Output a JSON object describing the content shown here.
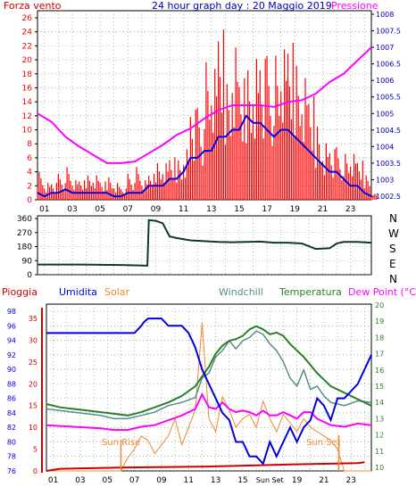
{
  "colors": {
    "background": "#ffffff",
    "frame": "#000000",
    "grid": "#6f8f6f",
    "wind_speed": "#ff0000",
    "wind_avg": "#0000e6",
    "pressure": "#ff00ff",
    "direction": "#0b3a30",
    "rain": "#cc0000",
    "humidity": "#0000dd",
    "solar": "#ee8833",
    "windchill": "#5a8a8a",
    "temperature": "#2a7f2a",
    "dewpoint": "#ff00ff",
    "title_blue": "#0000aa",
    "left_red": "#cc0000"
  },
  "header": {
    "left_label": "Forza vento",
    "title": "24 hour graph day : 20 Maggio 2019",
    "right_label": "Pressione"
  },
  "direction_labels": [
    "N",
    "W",
    "S",
    "E",
    "N"
  ],
  "legend": {
    "rain": "Pioggia",
    "humidity": "Umidita",
    "solar": "Solar",
    "windchill": "Windchill",
    "temperature": "Temperatura",
    "dewpoint": "Dew Point (°C)"
  },
  "annotations": {
    "sunrise": "Sun Rise",
    "sunset": "Sun Set",
    "sunset_axis": "Sun Set"
  },
  "chart_data": [
    {
      "type": "line",
      "name": "wind_pressure",
      "x_ticks": [
        "01",
        "03",
        "05",
        "07",
        "09",
        "11",
        "13",
        "15",
        "17",
        "19",
        "21",
        "23"
      ],
      "xlim": [
        0,
        24
      ],
      "ylim": [
        0,
        26
      ],
      "y_ticks": [
        0,
        2,
        4,
        6,
        8,
        10,
        12,
        14,
        16,
        18,
        20,
        22,
        24,
        26
      ],
      "y2lim": [
        1002.5,
        1008
      ],
      "y2_ticks": [
        1002.5,
        1003,
        1003.5,
        1004,
        1004.5,
        1005,
        1005.5,
        1006,
        1006.5,
        1007,
        1007.5,
        1008
      ],
      "gust": {
        "x": [
          0,
          0.5,
          1,
          1.5,
          2,
          2.5,
          3,
          3.5,
          4,
          4.5,
          5,
          5.5,
          6,
          6.5,
          7,
          7.5,
          8,
          8.5,
          9,
          9.5,
          10,
          10.5,
          11,
          11.5,
          12,
          12.5,
          13,
          13.5,
          14,
          14.5,
          15,
          15.5,
          16,
          16.5,
          17,
          17.5,
          18,
          18.5,
          19,
          19.5,
          20,
          20.5,
          21,
          21.5,
          22,
          22.5,
          23,
          23.5,
          24
        ],
        "values": [
          5,
          3,
          3,
          4,
          5,
          3,
          3,
          4,
          4,
          3,
          4,
          3,
          2,
          4,
          5,
          3,
          4,
          6,
          6,
          7,
          7,
          9,
          16,
          14,
          21,
          20,
          26,
          19,
          25,
          20,
          23,
          25,
          25,
          22,
          22,
          23,
          24,
          22,
          20,
          17,
          13,
          10,
          9,
          8,
          7,
          7,
          6,
          4,
          1
        ]
      },
      "average": {
        "x": [
          0,
          0.5,
          1,
          1.5,
          2,
          2.5,
          3,
          3.5,
          4,
          4.5,
          5,
          5.5,
          6,
          6.5,
          7,
          7.5,
          8,
          8.5,
          9,
          9.5,
          10,
          10.5,
          11,
          11.5,
          12,
          12.5,
          13,
          13.5,
          14,
          14.5,
          15,
          15.5,
          16,
          16.5,
          17,
          17.5,
          18,
          18.5,
          19,
          19.5,
          20,
          20.5,
          21,
          21.5,
          22,
          22.5,
          23,
          23.5,
          24
        ],
        "values": [
          1,
          0.5,
          1,
          1,
          1.5,
          1,
          1,
          1,
          1,
          1,
          1,
          0.5,
          0.5,
          1,
          1,
          1,
          2,
          2,
          2,
          3,
          3,
          4,
          6,
          6,
          7,
          7,
          9,
          9,
          10,
          10,
          12,
          11,
          11,
          10,
          9,
          10,
          10,
          9,
          8,
          7,
          6,
          5,
          4,
          4,
          3,
          2,
          2,
          1,
          0.5
        ]
      },
      "pressure": {
        "x": [
          0,
          1,
          2,
          3,
          4,
          5,
          5.5,
          6,
          7,
          8,
          9,
          10,
          11,
          12,
          13,
          14,
          15,
          16,
          17,
          18,
          19,
          20,
          21,
          22,
          23,
          24
        ],
        "values": [
          1005,
          1004.75,
          1004.3,
          1004,
          1003.75,
          1003.5,
          1003.5,
          1003.5,
          1003.55,
          1003.8,
          1004.05,
          1004.35,
          1004.55,
          1004.85,
          1005.1,
          1005.25,
          1005.25,
          1005.25,
          1005.2,
          1005.35,
          1005.4,
          1005.6,
          1005.95,
          1006.2,
          1006.6,
          1007
        ]
      }
    },
    {
      "type": "line",
      "name": "wind_direction",
      "x_ticks": [
        "01",
        "03",
        "05",
        "07",
        "09",
        "11",
        "13",
        "15",
        "17",
        "19",
        "21",
        "23"
      ],
      "xlim": [
        0,
        24
      ],
      "ylim": [
        0,
        360
      ],
      "y_ticks": [
        0,
        90,
        180,
        270,
        360
      ],
      "direction": {
        "x": [
          0,
          1,
          2,
          3,
          4,
          5,
          6,
          7,
          7.9,
          8,
          8.5,
          9,
          9.5,
          10,
          11,
          12,
          13,
          14,
          15,
          16,
          17,
          18,
          19,
          20,
          21,
          21.5,
          22,
          23,
          24
        ],
        "values": [
          65,
          65,
          65,
          65,
          64,
          63,
          62,
          60,
          58,
          350,
          345,
          330,
          245,
          235,
          220,
          215,
          210,
          208,
          210,
          212,
          205,
          205,
          200,
          165,
          170,
          200,
          210,
          210,
          205
        ]
      }
    },
    {
      "type": "line",
      "name": "rain_humidity_temperature",
      "x_ticks": [
        "01",
        "03",
        "05",
        "07",
        "09",
        "11",
        "13",
        "15",
        "Sun Set",
        "19",
        "21",
        "23"
      ],
      "xlim": [
        0,
        24
      ],
      "ylim_humidity": [
        76,
        98
      ],
      "y_ticks_humidity": [
        76,
        78,
        80,
        82,
        84,
        86,
        88,
        90,
        92,
        94,
        96,
        98
      ],
      "ylim_rain": [
        0,
        35
      ],
      "y_ticks_rain": [
        0,
        5,
        10,
        15,
        20,
        25,
        30,
        35
      ],
      "ylim_temperature": [
        10,
        20
      ],
      "y_ticks_temperature": [
        10,
        11,
        12,
        13,
        14,
        15,
        16,
        17,
        18,
        19,
        20
      ],
      "rain": {
        "x": [
          0,
          1,
          6,
          12,
          18,
          23,
          23.5
        ],
        "values": [
          0,
          0.5,
          0.8,
          1,
          1.5,
          1.8,
          2
        ]
      },
      "humidity": {
        "x": [
          0,
          1,
          2,
          3,
          4,
          5,
          6,
          6.5,
          7,
          7.2,
          7.5,
          8,
          8.5,
          9,
          9.5,
          10,
          10.5,
          11,
          11.5,
          12,
          12.5,
          13,
          13.5,
          14,
          14.5,
          15,
          15.5,
          16,
          16.5,
          17,
          17.5,
          18,
          18.5,
          19,
          19.5,
          20,
          20.5,
          21,
          21.5,
          22,
          22.5,
          23,
          23.5,
          24
        ],
        "values": [
          95,
          95,
          95,
          95,
          95,
          95,
          95,
          95,
          96,
          96.5,
          97,
          97,
          97,
          96,
          96,
          96,
          95,
          93,
          90,
          88,
          86,
          84,
          83,
          80,
          80,
          78,
          78,
          77,
          80,
          78,
          80,
          82,
          80,
          82,
          83,
          86,
          85,
          83,
          86,
          86,
          87,
          88,
          90,
          92
        ]
      },
      "solar": {
        "x": [
          0,
          5.5,
          6,
          6.5,
          7,
          7.5,
          8,
          8.5,
          9,
          9.5,
          10,
          10.5,
          11,
          11.5,
          12,
          12.5,
          13,
          13.5,
          14,
          14.5,
          15,
          15.5,
          16,
          16.5,
          17,
          17.5,
          18,
          18.5,
          19,
          19.5,
          20,
          20.5,
          21,
          21.5,
          22,
          23,
          24
        ],
        "values": [
          0,
          0,
          3,
          5,
          8,
          7,
          4,
          6,
          8,
          12,
          6,
          10,
          14,
          34,
          12,
          9,
          17,
          14,
          10,
          12,
          13,
          10,
          16,
          12,
          9,
          13,
          11,
          9,
          12,
          10,
          9,
          8,
          7,
          5,
          0,
          0,
          0
        ]
      },
      "windchill": {
        "x": [
          0,
          2,
          4,
          5,
          6,
          7,
          8,
          9,
          10,
          11,
          11.5,
          12,
          12.5,
          13,
          13.5,
          14,
          14.5,
          15,
          15.5,
          16,
          16.5,
          17,
          17.5,
          18,
          18.5,
          19,
          19.5,
          20,
          20.5,
          21,
          22,
          23,
          24
        ],
        "values": [
          13.6,
          13.4,
          13.2,
          13,
          13,
          13.2,
          13.4,
          13.8,
          14,
          14.3,
          15.5,
          15.8,
          16.8,
          17.2,
          17.8,
          17.3,
          17.8,
          18,
          18.4,
          18.2,
          17.6,
          17.2,
          16.5,
          15.5,
          15,
          16,
          14.8,
          15,
          14.4,
          14,
          13.8,
          14.1,
          14
        ]
      },
      "temperature": {
        "x": [
          0,
          1,
          2,
          3,
          4,
          5,
          6,
          7,
          8,
          9,
          10,
          11,
          11.5,
          12,
          12.5,
          13,
          13.5,
          14,
          14.5,
          15,
          15.5,
          16,
          16.5,
          17,
          17.5,
          18,
          18.5,
          19,
          19.5,
          20,
          20.5,
          21,
          22,
          23,
          24
        ],
        "values": [
          13.9,
          13.7,
          13.6,
          13.5,
          13.4,
          13.3,
          13.2,
          13.4,
          13.7,
          14,
          14.4,
          15,
          15.6,
          16.2,
          17,
          17.5,
          17.8,
          17.9,
          18.1,
          18.5,
          18.7,
          18.5,
          18.2,
          18.3,
          18.1,
          17.6,
          17.2,
          16.8,
          16.3,
          15.8,
          15.4,
          15,
          14.6,
          14.2,
          13.8
        ]
      },
      "dewpoint": {
        "x": [
          0,
          2,
          4,
          5,
          6,
          7,
          8,
          9,
          10,
          11,
          11.5,
          12,
          12.5,
          13,
          13.5,
          14,
          14.5,
          15,
          15.5,
          16,
          16.5,
          17,
          17.5,
          18,
          18.5,
          19,
          19.5,
          20,
          20.5,
          21,
          22,
          23,
          24
        ],
        "values": [
          12.6,
          12.5,
          12.4,
          12.3,
          12.3,
          12.5,
          12.6,
          12.9,
          13.2,
          13.6,
          14.5,
          13.7,
          13.6,
          14,
          13.6,
          13.4,
          13.5,
          13.4,
          13.2,
          13.5,
          13.2,
          13.2,
          13.4,
          13.2,
          13,
          13.4,
          13.4,
          13,
          12.8,
          12.6,
          12.5,
          12.7,
          12.6
        ]
      }
    }
  ]
}
